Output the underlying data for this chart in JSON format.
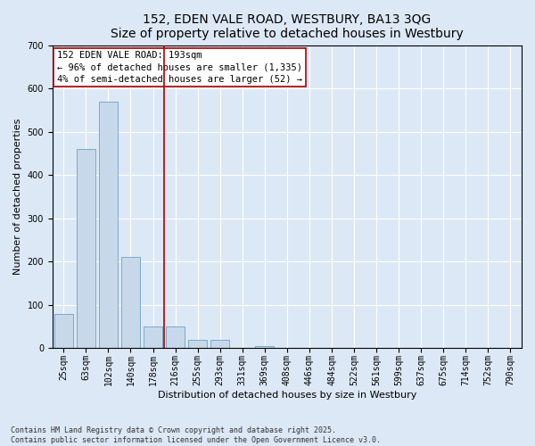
{
  "title": "152, EDEN VALE ROAD, WESTBURY, BA13 3QG",
  "subtitle": "Size of property relative to detached houses in Westbury",
  "xlabel": "Distribution of detached houses by size in Westbury",
  "ylabel": "Number of detached properties",
  "footnote1": "Contains HM Land Registry data © Crown copyright and database right 2025.",
  "footnote2": "Contains public sector information licensed under the Open Government Licence v3.0.",
  "categories": [
    "25sqm",
    "63sqm",
    "102sqm",
    "140sqm",
    "178sqm",
    "216sqm",
    "255sqm",
    "293sqm",
    "331sqm",
    "369sqm",
    "408sqm",
    "446sqm",
    "484sqm",
    "522sqm",
    "561sqm",
    "599sqm",
    "637sqm",
    "675sqm",
    "714sqm",
    "752sqm",
    "790sqm"
  ],
  "values": [
    80,
    460,
    570,
    210,
    50,
    50,
    20,
    20,
    0,
    5,
    0,
    0,
    0,
    0,
    0,
    0,
    0,
    0,
    0,
    0,
    0
  ],
  "bar_color": "#c8d8eb",
  "bar_edge_color": "#7aaac8",
  "property_line_x": 4.5,
  "property_line_color": "#aa0000",
  "annotation_line1": "152 EDEN VALE ROAD: 193sqm",
  "annotation_line2": "← 96% of detached houses are smaller (1,335)",
  "annotation_line3": "4% of semi-detached houses are larger (52) →",
  "annotation_box_color": "#aa0000",
  "ylim": [
    0,
    700
  ],
  "yticks": [
    0,
    100,
    200,
    300,
    400,
    500,
    600,
    700
  ],
  "bg_color": "#dce8f5",
  "plot_bg_color": "#dce8f5",
  "grid_color": "#ffffff",
  "title_fontsize": 10,
  "subtitle_fontsize": 9,
  "axis_label_fontsize": 8,
  "tick_fontsize": 7,
  "annotation_fontsize": 7.5,
  "footnote_fontsize": 6
}
